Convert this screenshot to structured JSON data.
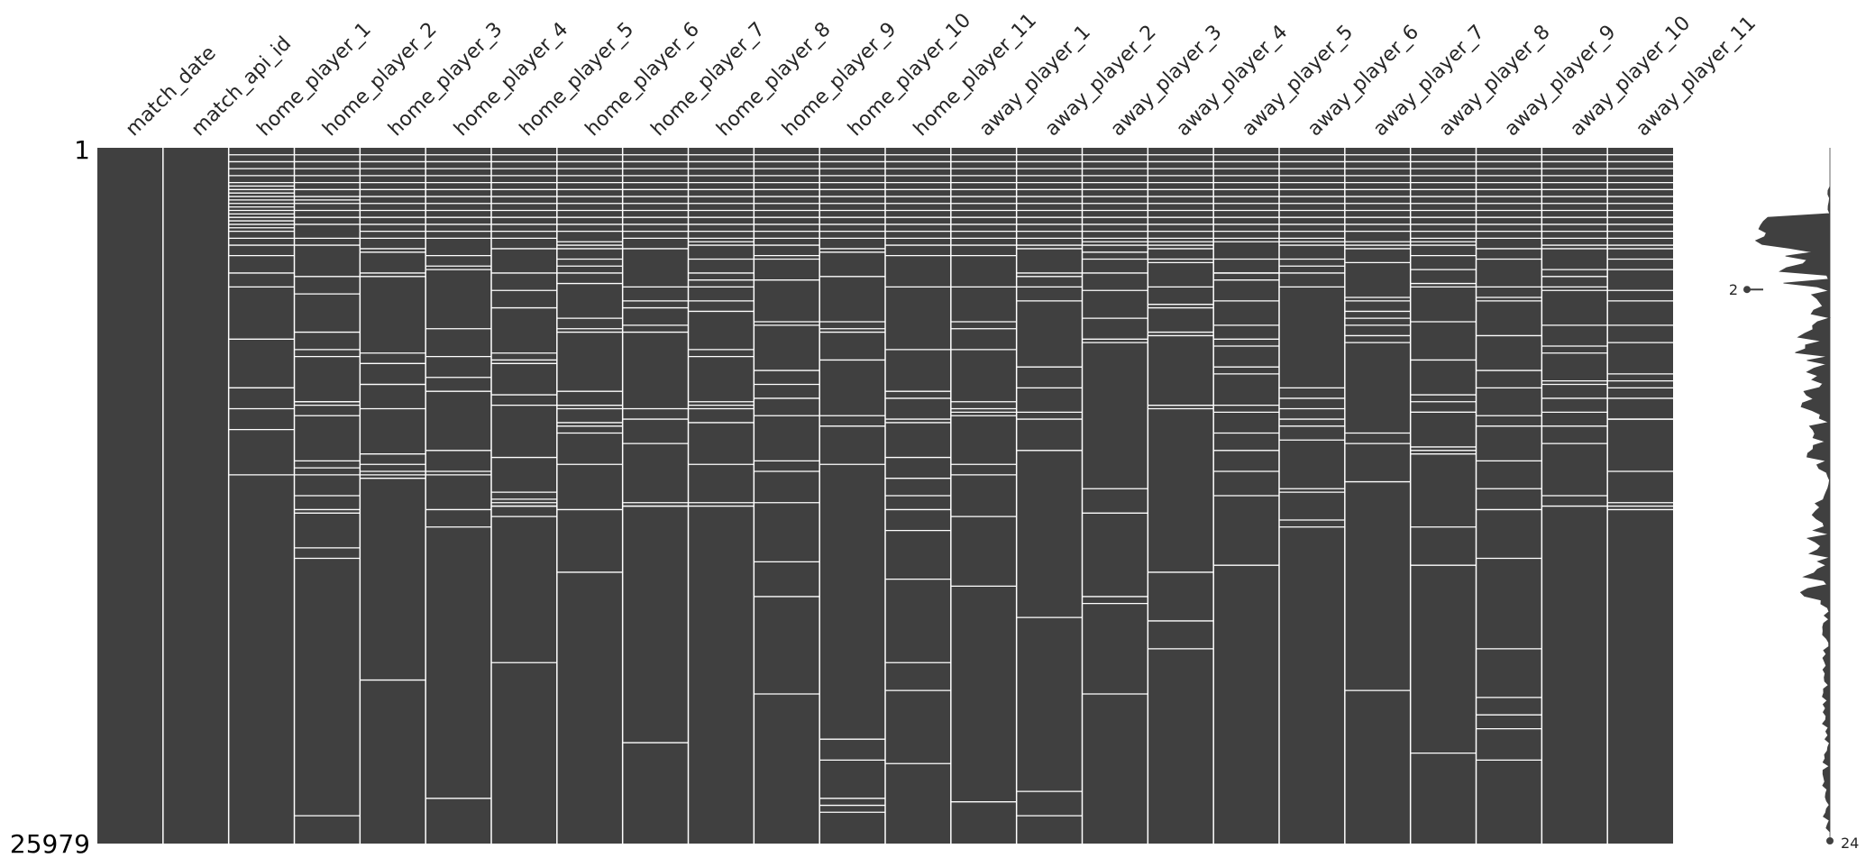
{
  "chart_data": {
    "type": "heatmap",
    "subtype": "missingno-matrix",
    "row_count": 25979,
    "row_labels": {
      "top": "1",
      "bottom": "25979"
    },
    "columns": [
      "match_date",
      "match_api_id",
      "home_player_1",
      "home_player_2",
      "home_player_3",
      "home_player_4",
      "home_player_5",
      "home_player_6",
      "home_player_7",
      "home_player_8",
      "home_player_9",
      "home_player_10",
      "home_player_11",
      "away_player_1",
      "away_player_2",
      "away_player_3",
      "away_player_4",
      "away_player_5",
      "away_player_6",
      "away_player_7",
      "away_player_8",
      "away_player_9",
      "away_player_10",
      "away_player_11"
    ],
    "missing_rows_fraction": [
      [],
      [],
      [
        0.01,
        0.02,
        0.03,
        0.04,
        0.05,
        0.055,
        0.06,
        0.065,
        0.07,
        0.075,
        0.08,
        0.085,
        0.09,
        0.095,
        0.1,
        0.105,
        0.11,
        0.115,
        0.12,
        0.13,
        0.14,
        0.155,
        0.18,
        0.2,
        0.275,
        0.345,
        0.345,
        0.375,
        0.405,
        0.47
      ],
      [
        0.01,
        0.02,
        0.03,
        0.04,
        0.05,
        0.06,
        0.07,
        0.075,
        0.08,
        0.09,
        0.1,
        0.11,
        0.13,
        0.14,
        0.185,
        0.21,
        0.265,
        0.29,
        0.3,
        0.365,
        0.365,
        0.37,
        0.385,
        0.45,
        0.46,
        0.47,
        0.5,
        0.52,
        0.525,
        0.575,
        0.59,
        0.96
      ],
      [
        0.01,
        0.02,
        0.03,
        0.04,
        0.05,
        0.06,
        0.07,
        0.08,
        0.09,
        0.1,
        0.11,
        0.12,
        0.13,
        0.145,
        0.15,
        0.18,
        0.185,
        0.295,
        0.31,
        0.34,
        0.34,
        0.375,
        0.44,
        0.455,
        0.465,
        0.47,
        0.475,
        0.765
      ],
      [
        0.01,
        0.02,
        0.03,
        0.04,
        0.05,
        0.06,
        0.07,
        0.08,
        0.09,
        0.1,
        0.11,
        0.12,
        0.13,
        0.155,
        0.17,
        0.175,
        0.26,
        0.3,
        0.33,
        0.35,
        0.435,
        0.465,
        0.52,
        0.47,
        0.545,
        0.935
      ],
      [
        0.01,
        0.02,
        0.03,
        0.04,
        0.05,
        0.06,
        0.07,
        0.08,
        0.09,
        0.1,
        0.11,
        0.12,
        0.13,
        0.145,
        0.18,
        0.205,
        0.23,
        0.295,
        0.305,
        0.31,
        0.355,
        0.37,
        0.445,
        0.495,
        0.515,
        0.505,
        0.74,
        0.51,
        0.515,
        0.53
      ],
      [
        0.01,
        0.02,
        0.03,
        0.04,
        0.05,
        0.06,
        0.07,
        0.08,
        0.09,
        0.1,
        0.11,
        0.12,
        0.135,
        0.14,
        0.145,
        0.16,
        0.17,
        0.18,
        0.195,
        0.245,
        0.26,
        0.265,
        0.35,
        0.37,
        0.37,
        0.375,
        0.395,
        0.4,
        0.41,
        0.455,
        0.52,
        0.61
      ],
      [
        0.01,
        0.02,
        0.03,
        0.04,
        0.05,
        0.06,
        0.07,
        0.08,
        0.09,
        0.1,
        0.11,
        0.12,
        0.13,
        0.145,
        0.2,
        0.22,
        0.23,
        0.255,
        0.265,
        0.375,
        0.39,
        0.425,
        0.515,
        0.51,
        0.515,
        0.855
      ],
      [
        0.01,
        0.02,
        0.03,
        0.04,
        0.05,
        0.06,
        0.07,
        0.08,
        0.09,
        0.1,
        0.11,
        0.12,
        0.13,
        0.135,
        0.14,
        0.16,
        0.18,
        0.19,
        0.2,
        0.22,
        0.235,
        0.29,
        0.3,
        0.365,
        0.37,
        0.375,
        0.395,
        0.455,
        0.51,
        0.515
      ],
      [
        0.01,
        0.02,
        0.03,
        0.04,
        0.05,
        0.06,
        0.07,
        0.08,
        0.09,
        0.1,
        0.11,
        0.12,
        0.13,
        0.14,
        0.155,
        0.16,
        0.19,
        0.25,
        0.255,
        0.32,
        0.34,
        0.36,
        0.385,
        0.45,
        0.465,
        0.51,
        0.595,
        0.645,
        0.785
      ],
      [
        0.01,
        0.02,
        0.03,
        0.04,
        0.05,
        0.06,
        0.07,
        0.08,
        0.09,
        0.1,
        0.11,
        0.12,
        0.13,
        0.145,
        0.15,
        0.185,
        0.25,
        0.26,
        0.265,
        0.305,
        0.385,
        0.4,
        0.455,
        0.85,
        0.88,
        0.935,
        0.945,
        0.955
      ],
      [
        0.01,
        0.02,
        0.03,
        0.04,
        0.05,
        0.06,
        0.07,
        0.08,
        0.09,
        0.1,
        0.11,
        0.12,
        0.13,
        0.14,
        0.155,
        0.2,
        0.29,
        0.35,
        0.36,
        0.39,
        0.395,
        0.445,
        0.475,
        0.5,
        0.52,
        0.55,
        0.62,
        0.74,
        0.78,
        0.885
      ],
      [
        0.01,
        0.02,
        0.03,
        0.04,
        0.05,
        0.06,
        0.07,
        0.08,
        0.09,
        0.1,
        0.11,
        0.12,
        0.13,
        0.14,
        0.155,
        0.2,
        0.25,
        0.26,
        0.29,
        0.365,
        0.375,
        0.38,
        0.385,
        0.455,
        0.47,
        0.53,
        0.63,
        0.94
      ],
      [
        0.01,
        0.02,
        0.03,
        0.04,
        0.05,
        0.06,
        0.07,
        0.08,
        0.09,
        0.1,
        0.11,
        0.12,
        0.13,
        0.14,
        0.145,
        0.18,
        0.185,
        0.2,
        0.22,
        0.315,
        0.345,
        0.38,
        0.39,
        0.435,
        0.675,
        0.925,
        0.96
      ],
      [
        0.01,
        0.02,
        0.03,
        0.04,
        0.05,
        0.06,
        0.07,
        0.08,
        0.09,
        0.1,
        0.11,
        0.12,
        0.13,
        0.135,
        0.14,
        0.15,
        0.16,
        0.18,
        0.205,
        0.245,
        0.275,
        0.28,
        0.49,
        0.525,
        0.655,
        0.645,
        0.785
      ],
      [
        0.01,
        0.02,
        0.03,
        0.04,
        0.05,
        0.06,
        0.07,
        0.08,
        0.09,
        0.1,
        0.11,
        0.12,
        0.13,
        0.135,
        0.14,
        0.145,
        0.16,
        0.165,
        0.2,
        0.225,
        0.23,
        0.265,
        0.27,
        0.37,
        0.37,
        0.375,
        0.61,
        0.68,
        0.72
      ],
      [
        0.01,
        0.02,
        0.03,
        0.04,
        0.05,
        0.06,
        0.07,
        0.08,
        0.09,
        0.1,
        0.11,
        0.12,
        0.13,
        0.135,
        0.16,
        0.18,
        0.18,
        0.19,
        0.22,
        0.255,
        0.275,
        0.285,
        0.315,
        0.325,
        0.37,
        0.38,
        0.41,
        0.435,
        0.465,
        0.5,
        0.6
      ],
      [
        0.01,
        0.02,
        0.03,
        0.04,
        0.05,
        0.06,
        0.07,
        0.08,
        0.09,
        0.1,
        0.11,
        0.12,
        0.13,
        0.135,
        0.14,
        0.16,
        0.17,
        0.18,
        0.2,
        0.345,
        0.36,
        0.375,
        0.39,
        0.4,
        0.42,
        0.49,
        0.495,
        0.535,
        0.545
      ],
      [
        0.01,
        0.02,
        0.03,
        0.04,
        0.05,
        0.06,
        0.07,
        0.08,
        0.09,
        0.1,
        0.11,
        0.12,
        0.135,
        0.14,
        0.145,
        0.165,
        0.215,
        0.22,
        0.235,
        0.245,
        0.255,
        0.27,
        0.28,
        0.41,
        0.425,
        0.48,
        0.78
      ],
      [
        0.01,
        0.02,
        0.03,
        0.04,
        0.05,
        0.06,
        0.07,
        0.08,
        0.09,
        0.1,
        0.11,
        0.12,
        0.13,
        0.135,
        0.14,
        0.155,
        0.175,
        0.195,
        0.2,
        0.25,
        0.305,
        0.355,
        0.365,
        0.38,
        0.38,
        0.43,
        0.435,
        0.44,
        0.545,
        0.6,
        0.87
      ],
      [
        0.01,
        0.02,
        0.03,
        0.04,
        0.05,
        0.06,
        0.07,
        0.08,
        0.09,
        0.1,
        0.11,
        0.12,
        0.13,
        0.145,
        0.16,
        0.2,
        0.215,
        0.22,
        0.27,
        0.32,
        0.345,
        0.385,
        0.4,
        0.45,
        0.49,
        0.52,
        0.59,
        0.72,
        0.79,
        0.815,
        0.835,
        0.88
      ],
      [
        0.01,
        0.02,
        0.03,
        0.04,
        0.05,
        0.06,
        0.07,
        0.08,
        0.09,
        0.1,
        0.11,
        0.12,
        0.13,
        0.14,
        0.145,
        0.175,
        0.185,
        0.2,
        0.205,
        0.255,
        0.285,
        0.295,
        0.335,
        0.34,
        0.36,
        0.38,
        0.4,
        0.425,
        0.5,
        0.515
      ],
      [
        0.01,
        0.02,
        0.03,
        0.04,
        0.05,
        0.06,
        0.07,
        0.08,
        0.09,
        0.1,
        0.11,
        0.12,
        0.13,
        0.14,
        0.145,
        0.16,
        0.175,
        0.205,
        0.22,
        0.255,
        0.28,
        0.325,
        0.335,
        0.345,
        0.36,
        0.39,
        0.39,
        0.465,
        0.51,
        0.515,
        0.52
      ]
    ],
    "sparkline": {
      "min_label": "2",
      "max_label": "24",
      "min_value": 2,
      "max_value": 24,
      "min_row_fraction": 0.1
    },
    "colors": {
      "filled": "#404040",
      "missing": "#ffffff",
      "background": "#ffffff"
    }
  }
}
